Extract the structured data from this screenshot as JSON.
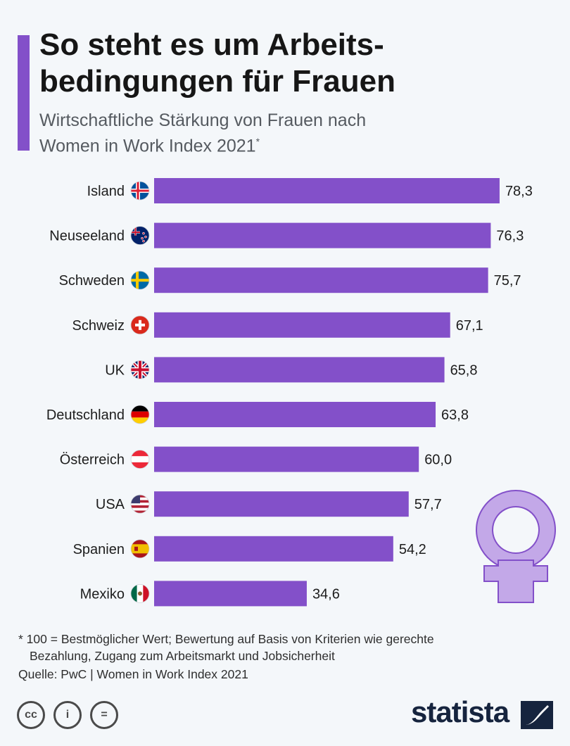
{
  "header": {
    "title_line1": "So steht es um Arbeits-",
    "title_line2": "bedingungen für Frauen",
    "subtitle_line1": "Wirtschaftliche Stärkung von Frauen nach",
    "subtitle_line2": "Women in Work Index 2021",
    "subtitle_mark": "*"
  },
  "colors": {
    "accent": "#8350c9",
    "bar": "#8350c9",
    "symbol_fill": "#c3a8e8"
  },
  "chart_data": {
    "type": "bar",
    "orientation": "horizontal",
    "categories": [
      "Island",
      "Neuseeland",
      "Schweden",
      "Schweiz",
      "UK",
      "Deutschland",
      "Österreich",
      "USA",
      "Spanien",
      "Mexiko"
    ],
    "values": [
      78.3,
      76.3,
      75.7,
      67.1,
      65.8,
      63.8,
      60.0,
      57.7,
      54.2,
      34.6
    ],
    "value_labels": [
      "78,3",
      "76,3",
      "75,7",
      "67,1",
      "65,8",
      "63,8",
      "60,0",
      "57,7",
      "54,2",
      "34,6"
    ],
    "flags": [
      "iceland-flag-icon",
      "new-zealand-flag-icon",
      "sweden-flag-icon",
      "switzerland-flag-icon",
      "uk-flag-icon",
      "germany-flag-icon",
      "austria-flag-icon",
      "usa-flag-icon",
      "spain-flag-icon",
      "mexico-flag-icon"
    ],
    "xlim": [
      0,
      100
    ],
    "grid": false,
    "title": "So steht es um Arbeitsbedingungen für Frauen",
    "xlabel": "",
    "ylabel": ""
  },
  "footer": {
    "note_line1": "* 100 = Bestmöglicher Wert; Bewertung auf Basis von Kriterien wie gerechte",
    "note_line2": "Bezahlung, Zugang zum Arbeitsmarkt und Jobsicherheit",
    "source": "Quelle: PwC | Women in Work Index 2021",
    "brand": "statista",
    "cc_labels": [
      "cc",
      "i",
      "="
    ]
  }
}
